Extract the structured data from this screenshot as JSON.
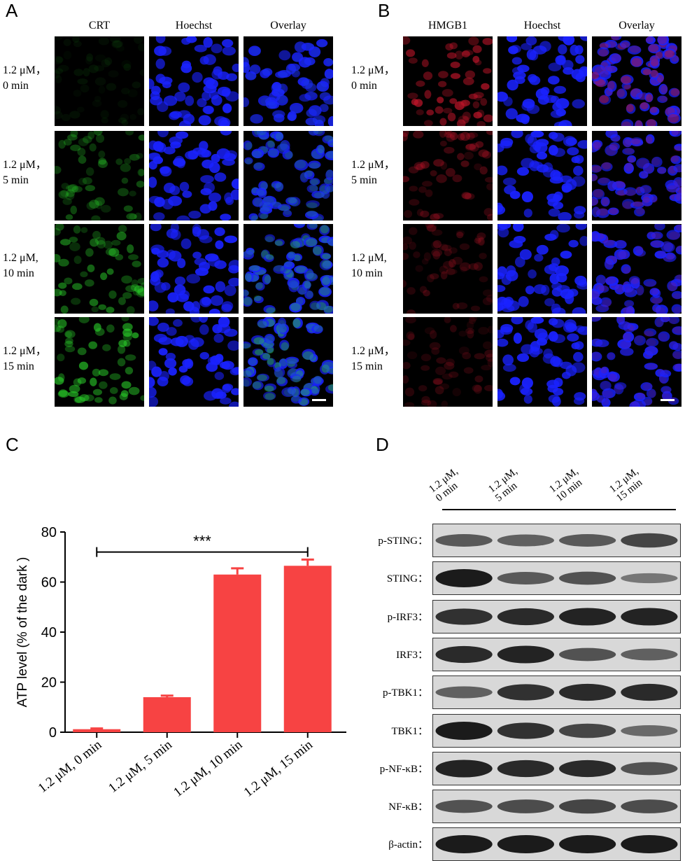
{
  "panel_a": {
    "letter": "A",
    "columns": [
      "CRT",
      "Hoechst",
      "Overlay"
    ],
    "rows": [
      {
        "line1": "1.2 μM，",
        "line2": "0 min"
      },
      {
        "line1": "1.2 μM，",
        "line2": "5 min"
      },
      {
        "line1": "1.2 μM,",
        "line2": "10 min"
      },
      {
        "line1": "1.2 μM，",
        "line2": "15 min"
      }
    ],
    "marker_color": "#2bd42b",
    "nuclei_color": "#1a22ff",
    "crt_intensity": [
      0.1,
      0.45,
      0.65,
      0.8
    ]
  },
  "panel_b": {
    "letter": "B",
    "columns": [
      "HMGB1",
      "Hoechst",
      "Overlay"
    ],
    "rows": [
      {
        "line1": "1.2 μM，",
        "line2": "0 min"
      },
      {
        "line1": "1.2 μM，",
        "line2": "5 min"
      },
      {
        "line1": "1.2 μM,",
        "line2": "10 min"
      },
      {
        "line1": "1.2 μM，",
        "line2": "15 min"
      }
    ],
    "marker_color": "#c0152a",
    "nuclei_color": "#1a22ff",
    "hmgb1_intensity": [
      0.9,
      0.5,
      0.35,
      0.3
    ]
  },
  "panel_c": {
    "letter": "C",
    "significance": "***"
  },
  "chart_data": {
    "type": "bar",
    "categories": [
      "1.2 μM, 0 min",
      "1.2 μM, 5 min",
      "1.2 μM, 10 min",
      "1.2 μM, 15 min"
    ],
    "values": [
      1.2,
      14,
      63,
      66.5
    ],
    "errors": [
      0.3,
      0.6,
      2.5,
      2.5
    ],
    "ylabel": "ATP level (% of the dark )",
    "ylim": [
      0,
      80
    ],
    "yticks": [
      "0",
      "20",
      "40",
      "60",
      "80"
    ],
    "bar_color": "#f74343"
  },
  "panel_d": {
    "letter": "D",
    "lanes": [
      "1.2 μM,\n0 min",
      "1.2 μM,\n5 min",
      "1.2 μM,\n10 min",
      "1.2 μM,\n15 min"
    ],
    "lane_lines": [
      [
        "1.2 μM,",
        "0 min"
      ],
      [
        "1.2 μM,",
        "5 min"
      ],
      [
        "1.2 μM,",
        "10 min"
      ],
      [
        "1.2 μM,",
        "15 min"
      ]
    ],
    "blots": [
      {
        "label": "p-STING：",
        "intensity": [
          0.55,
          0.5,
          0.55,
          0.7
        ]
      },
      {
        "label": "STING：",
        "intensity": [
          1.0,
          0.55,
          0.6,
          0.35
        ]
      },
      {
        "label": "p-IRF3：",
        "intensity": [
          0.85,
          0.9,
          0.95,
          0.95
        ]
      },
      {
        "label": "IRF3：",
        "intensity": [
          0.9,
          0.95,
          0.6,
          0.5
        ]
      },
      {
        "label": "p-TBK1：",
        "intensity": [
          0.5,
          0.85,
          0.9,
          0.9
        ]
      },
      {
        "label": "TBK1：",
        "intensity": [
          1.0,
          0.85,
          0.7,
          0.45
        ]
      },
      {
        "label": "p-NF-κB：",
        "intensity": [
          0.95,
          0.9,
          0.9,
          0.6
        ]
      },
      {
        "label": "NF-κB：",
        "intensity": [
          0.6,
          0.65,
          0.7,
          0.65
        ]
      },
      {
        "label": "β-actin：",
        "intensity": [
          1.0,
          1.0,
          1.0,
          1.0
        ]
      }
    ]
  }
}
